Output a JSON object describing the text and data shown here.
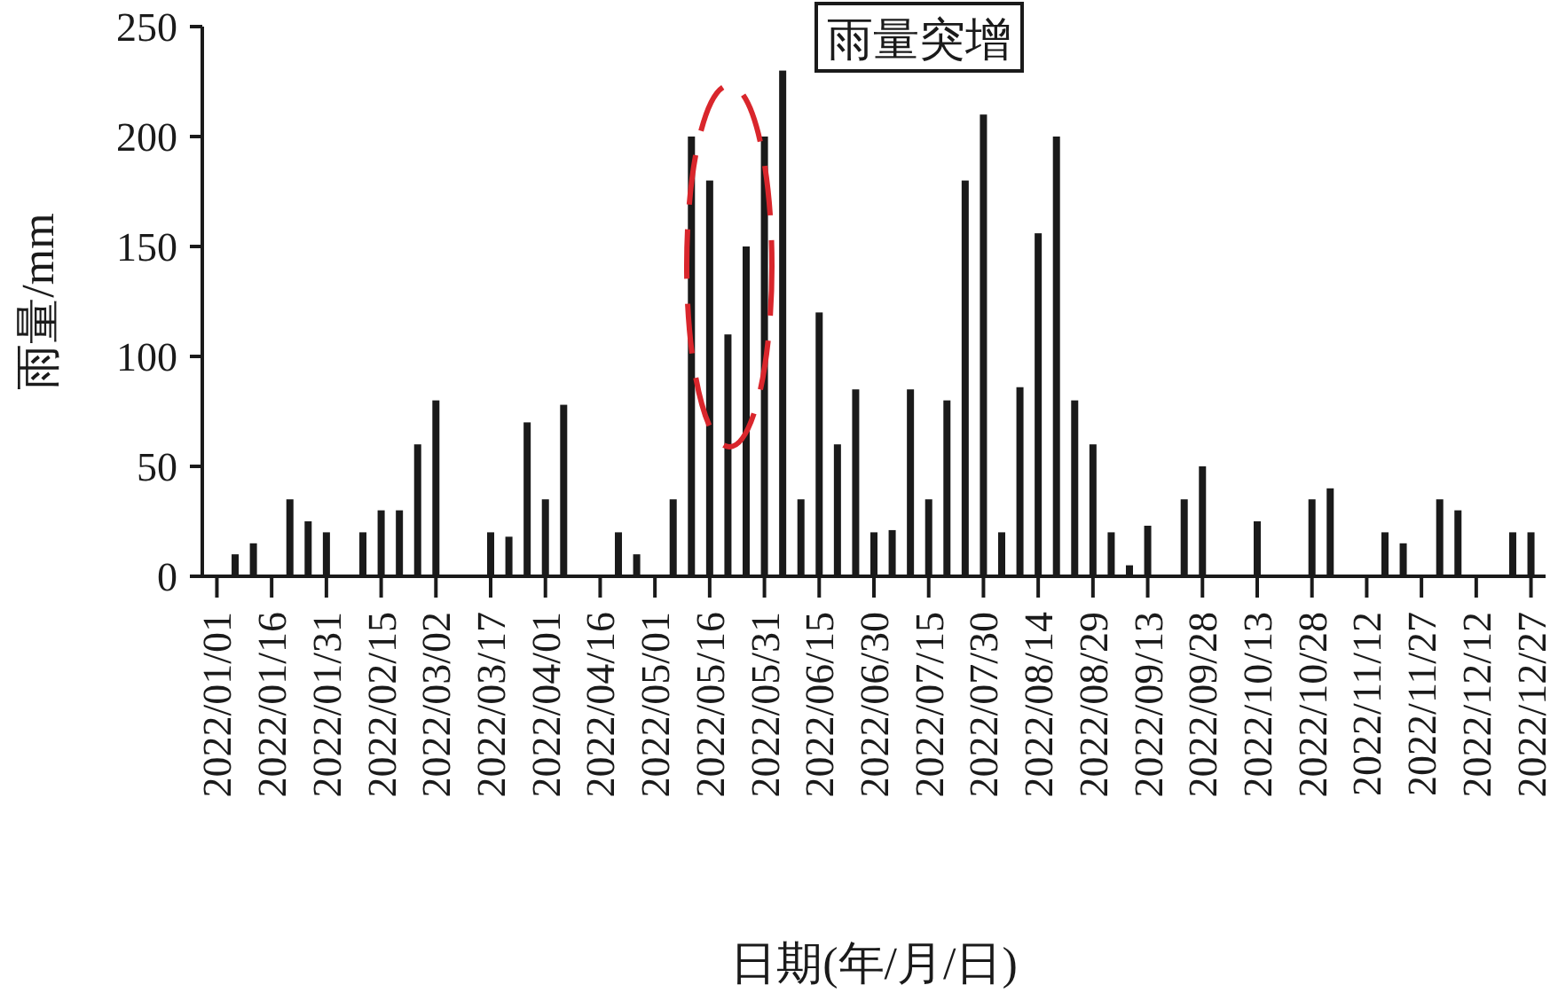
{
  "chart_data": {
    "type": "bar",
    "xlabel": "日期(年/月/日)",
    "ylabel": "雨量/mm",
    "color": "#1a1a1a",
    "x": [
      "2022-01-06",
      "2022-01-11",
      "2022-01-21",
      "2022-01-26",
      "2022-01-31",
      "2022-02-10",
      "2022-02-15",
      "2022-02-20",
      "2022-02-25",
      "2022-03-02",
      "2022-03-17",
      "2022-03-22",
      "2022-03-27",
      "2022-04-01",
      "2022-04-06",
      "2022-04-21",
      "2022-04-26",
      "2022-05-06",
      "2022-05-11",
      "2022-05-16",
      "2022-05-21",
      "2022-05-26",
      "2022-05-31",
      "2022-06-05",
      "2022-06-10",
      "2022-06-15",
      "2022-06-20",
      "2022-06-25",
      "2022-06-30",
      "2022-07-05",
      "2022-07-10",
      "2022-07-15",
      "2022-07-20",
      "2022-07-25",
      "2022-07-30",
      "2022-08-04",
      "2022-08-09",
      "2022-08-14",
      "2022-08-19",
      "2022-08-24",
      "2022-08-29",
      "2022-09-03",
      "2022-09-08",
      "2022-09-13",
      "2022-09-23",
      "2022-09-28",
      "2022-10-13",
      "2022-10-28",
      "2022-11-02",
      "2022-11-17",
      "2022-11-22",
      "2022-12-02",
      "2022-12-07",
      "2022-12-22",
      "2022-12-27"
    ],
    "values": [
      10,
      15,
      35,
      25,
      20,
      20,
      30,
      30,
      60,
      80,
      20,
      18,
      70,
      35,
      78,
      20,
      10,
      35,
      200,
      180,
      110,
      150,
      200,
      230,
      35,
      120,
      60,
      85,
      20,
      21,
      85,
      35,
      80,
      180,
      210,
      20,
      86,
      156,
      200,
      80,
      60,
      20,
      5,
      23,
      35,
      50,
      25,
      35,
      40,
      20,
      15,
      35,
      30,
      20,
      20
    ],
    "xlim": [
      "2021-12-28",
      "2022-12-31"
    ],
    "xticks": [
      {
        "value": "2022-01-01",
        "label": "2022/01/01"
      },
      {
        "value": "2022-01-16",
        "label": "2022/01/16"
      },
      {
        "value": "2022-01-31",
        "label": "2022/01/31"
      },
      {
        "value": "2022-02-15",
        "label": "2022/02/15"
      },
      {
        "value": "2022-03-02",
        "label": "2022/03/02"
      },
      {
        "value": "2022-03-17",
        "label": "2022/03/17"
      },
      {
        "value": "2022-04-01",
        "label": "2022/04/01"
      },
      {
        "value": "2022-04-16",
        "label": "2022/04/16"
      },
      {
        "value": "2022-05-01",
        "label": "2022/05/01"
      },
      {
        "value": "2022-05-16",
        "label": "2022/05/16"
      },
      {
        "value": "2022-05-31",
        "label": "2022/05/31"
      },
      {
        "value": "2022-06-15",
        "label": "2022/06/15"
      },
      {
        "value": "2022-06-30",
        "label": "2022/06/30"
      },
      {
        "value": "2022-07-15",
        "label": "2022/07/15"
      },
      {
        "value": "2022-07-30",
        "label": "2022/07/30"
      },
      {
        "value": "2022-08-14",
        "label": "2022/08/14"
      },
      {
        "value": "2022-08-29",
        "label": "2022/08/29"
      },
      {
        "value": "2022-09-13",
        "label": "2022/09/13"
      },
      {
        "value": "2022-09-28",
        "label": "2022/09/28"
      },
      {
        "value": "2022-10-13",
        "label": "2022/10/13"
      },
      {
        "value": "2022-10-28",
        "label": "2022/10/28"
      },
      {
        "value": "2022-11-12",
        "label": "2022/11/12"
      },
      {
        "value": "2022-11-27",
        "label": "2022/11/27"
      },
      {
        "value": "2022-12-12",
        "label": "2022/12/12"
      },
      {
        "value": "2022-12-27",
        "label": "2022/12/27"
      }
    ],
    "ylim": [
      0,
      250
    ],
    "yticks": [
      0,
      50,
      100,
      150,
      200,
      250
    ],
    "annotations": [
      "雨量突增"
    ]
  }
}
